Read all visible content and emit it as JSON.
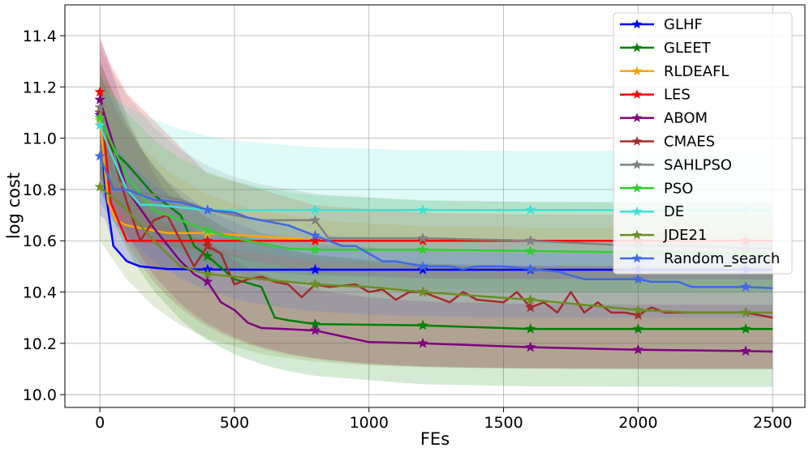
{
  "chart_data": {
    "type": "line",
    "xlabel": "FEs",
    "ylabel": "log cost",
    "xlim": [
      -130,
      2620
    ],
    "ylim": [
      9.95,
      11.52
    ],
    "xticks": [
      0,
      500,
      1000,
      1500,
      2000,
      2500
    ],
    "xtick_labels": [
      "0",
      "500",
      "1000",
      "1500",
      "2000",
      "2500"
    ],
    "yticks": [
      10.0,
      10.2,
      10.4,
      10.6,
      10.8,
      11.0,
      11.2,
      11.4
    ],
    "ytick_labels": [
      "10.0",
      "10.2",
      "10.4",
      "10.6",
      "10.8",
      "11.0",
      "11.2",
      "11.4"
    ],
    "grid": true,
    "legend_position": "top-right",
    "marker_x": [
      0,
      400,
      800,
      1200,
      1600,
      2000,
      2400
    ],
    "series": [
      {
        "name": "GLHF",
        "color": "#0000ff",
        "x": [
          0,
          20,
          50,
          100,
          150,
          250,
          400,
          600,
          800,
          1200,
          1600,
          2000,
          2400,
          2500
        ],
        "y": [
          11.09,
          10.8,
          10.58,
          10.52,
          10.5,
          10.49,
          10.488,
          10.487,
          10.487,
          10.487,
          10.487,
          10.487,
          10.487,
          10.487
        ],
        "band": [
          [
            10.7,
            11.25
          ],
          [
            10.45,
            10.55
          ]
        ]
      },
      {
        "name": "GLEET",
        "color": "#008000",
        "x": [
          0,
          50,
          100,
          150,
          200,
          300,
          350,
          400,
          500,
          600,
          650,
          700,
          800,
          1200,
          1600,
          2000,
          2400,
          2500
        ],
        "y": [
          11.08,
          10.95,
          10.9,
          10.84,
          10.78,
          10.7,
          10.58,
          10.54,
          10.45,
          10.42,
          10.3,
          10.29,
          10.275,
          10.27,
          10.256,
          10.256,
          10.256,
          10.256
        ],
        "band": [
          [
            10.8,
            11.3
          ],
          [
            10.03,
            10.5
          ]
        ]
      },
      {
        "name": "RLDEAFL",
        "color": "#ffa500",
        "x": [
          0,
          30,
          60,
          100,
          150,
          250,
          400,
          550,
          850,
          1200,
          1600,
          2000,
          2400,
          2500
        ],
        "y": [
          11.07,
          10.75,
          10.68,
          10.66,
          10.65,
          10.63,
          10.63,
          10.62,
          10.6,
          10.6,
          10.6,
          10.6,
          10.6,
          10.6
        ],
        "band": [
          [
            10.85,
            11.2
          ],
          [
            10.55,
            10.65
          ]
        ]
      },
      {
        "name": "LES",
        "color": "#ff0000",
        "x": [
          0,
          40,
          100,
          400,
          800,
          1200,
          1600,
          2000,
          2400,
          2500
        ],
        "y": [
          11.18,
          10.75,
          10.6,
          10.6,
          10.6,
          10.6,
          10.6,
          10.6,
          10.6,
          10.6
        ],
        "band": [
          [
            10.9,
            11.38
          ],
          [
            10.45,
            10.7
          ]
        ]
      },
      {
        "name": "ABOM",
        "color": "#800080",
        "x": [
          0,
          100,
          200,
          300,
          350,
          400,
          450,
          500,
          550,
          600,
          700,
          800,
          1000,
          1200,
          1600,
          2000,
          2400,
          2500
        ],
        "y": [
          11.15,
          10.8,
          10.65,
          10.52,
          10.47,
          10.44,
          10.36,
          10.33,
          10.28,
          10.26,
          10.255,
          10.25,
          10.205,
          10.2,
          10.185,
          10.175,
          10.17,
          10.168
        ],
        "band": [
          [
            10.85,
            11.4
          ],
          [
            10.1,
            10.35
          ]
        ]
      },
      {
        "name": "CMAES",
        "color": "#a52a2a",
        "x": [
          0,
          100,
          150,
          200,
          250,
          300,
          350,
          400,
          450,
          500,
          550,
          600,
          650,
          700,
          750,
          800,
          850,
          950,
          1000,
          1050,
          1100,
          1150,
          1200,
          1300,
          1350,
          1400,
          1500,
          1550,
          1600,
          1650,
          1700,
          1750,
          1800,
          1850,
          1900,
          1950,
          2000,
          2050,
          2100,
          2200,
          2300,
          2400,
          2500
        ],
        "y": [
          11.1,
          10.75,
          10.6,
          10.68,
          10.7,
          10.6,
          10.5,
          10.58,
          10.55,
          10.43,
          10.45,
          10.46,
          10.44,
          10.43,
          10.38,
          10.43,
          10.42,
          10.43,
          10.4,
          10.41,
          10.37,
          10.4,
          10.4,
          10.36,
          10.4,
          10.37,
          10.36,
          10.4,
          10.34,
          10.36,
          10.32,
          10.4,
          10.32,
          10.36,
          10.32,
          10.32,
          10.31,
          10.34,
          10.32,
          10.32,
          10.32,
          10.32,
          10.3
        ],
        "band": [
          [
            10.8,
            11.3
          ],
          [
            10.1,
            10.5
          ]
        ]
      },
      {
        "name": "SAHLPSO",
        "color": "#808080",
        "x": [
          0,
          50,
          100,
          200,
          300,
          400,
          500,
          600,
          800,
          850,
          1200,
          1600,
          1800,
          2000,
          2200,
          2400,
          2500
        ],
        "y": [
          11.12,
          10.85,
          10.8,
          10.78,
          10.76,
          10.72,
          10.7,
          10.68,
          10.68,
          10.61,
          10.61,
          10.6,
          10.59,
          10.58,
          10.58,
          10.57,
          10.57
        ],
        "band": [
          [
            10.85,
            11.35
          ],
          [
            10.4,
            10.75
          ]
        ]
      },
      {
        "name": "PSO",
        "color": "#32cd32",
        "x": [
          0,
          100,
          200,
          300,
          400,
          500,
          600,
          700,
          800,
          1200,
          1600,
          2000,
          2400,
          2500
        ],
        "y": [
          11.08,
          10.85,
          10.72,
          10.68,
          10.64,
          10.61,
          10.59,
          10.57,
          10.565,
          10.565,
          10.56,
          10.555,
          10.55,
          10.55
        ],
        "band": [
          [
            10.85,
            11.25
          ],
          [
            10.4,
            10.75
          ]
        ]
      },
      {
        "name": "DE",
        "color": "#40e0d0",
        "x": [
          0,
          50,
          100,
          150,
          200,
          300,
          400,
          500,
          800,
          1200,
          1600,
          2000,
          2400,
          2500
        ],
        "y": [
          11.05,
          10.92,
          10.8,
          10.74,
          10.74,
          10.73,
          10.72,
          10.72,
          10.72,
          10.72,
          10.72,
          10.72,
          10.72,
          10.72
        ],
        "band": [
          [
            10.9,
            11.2
          ],
          [
            10.5,
            10.95
          ]
        ]
      },
      {
        "name": "JDE21",
        "color": "#6b8e23",
        "x": [
          0,
          100,
          200,
          300,
          400,
          600,
          800,
          1000,
          1200,
          1400,
          1600,
          1800,
          2000,
          2200,
          2400,
          2500
        ],
        "y": [
          10.81,
          10.72,
          10.6,
          10.5,
          10.47,
          10.45,
          10.43,
          10.42,
          10.4,
          10.385,
          10.37,
          10.35,
          10.33,
          10.32,
          10.32,
          10.32
        ],
        "band": [
          [
            10.6,
            11.0
          ],
          [
            10.1,
            10.45
          ]
        ]
      },
      {
        "name": "Random_search",
        "color": "#4169e1",
        "x": [
          0,
          50,
          100,
          200,
          300,
          400,
          500,
          550,
          600,
          700,
          800,
          850,
          900,
          950,
          1000,
          1050,
          1100,
          1150,
          1200,
          1250,
          1300,
          1350,
          1400,
          1500,
          1600,
          1700,
          1800,
          1850,
          1900,
          2000,
          2050,
          2150,
          2200,
          2300,
          2400,
          2500
        ],
        "y": [
          10.93,
          10.8,
          10.8,
          10.76,
          10.75,
          10.72,
          10.71,
          10.69,
          10.68,
          10.66,
          10.62,
          10.6,
          10.58,
          10.58,
          10.55,
          10.52,
          10.52,
          10.51,
          10.5,
          10.5,
          10.5,
          10.49,
          10.5,
          10.5,
          10.49,
          10.48,
          10.45,
          10.45,
          10.45,
          10.45,
          10.44,
          10.44,
          10.42,
          10.42,
          10.42,
          10.415
        ],
        "band": [
          [
            10.75,
            11.05
          ],
          [
            10.3,
            10.6
          ]
        ]
      }
    ]
  }
}
